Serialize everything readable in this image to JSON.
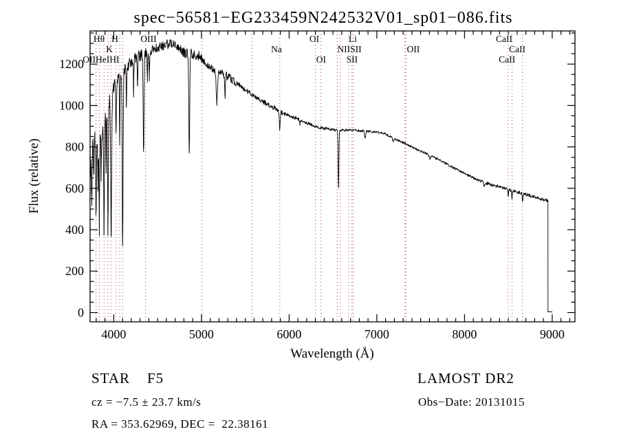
{
  "chart_data": {
    "type": "line",
    "title": "spec−56581−EG233459N242532V01_sp01−086.fits",
    "xlabel": "Wavelength (Å)",
    "ylabel": "Flux (relative)",
    "xlim": [
      3730,
      9260
    ],
    "ylim": [
      -45,
      1360
    ],
    "xticks": [
      4000,
      5000,
      6000,
      7000,
      8000,
      9000
    ],
    "yticks": [
      0,
      200,
      400,
      600,
      800,
      1000,
      1200
    ],
    "x_minor_step": 100,
    "x_major_step": 1000,
    "y_minor_step": 50,
    "y_major_step": 200,
    "grid": false,
    "legend": "none",
    "line_color": "#000000",
    "marker_line_color": "#9b3c3c",
    "series_name": "flux",
    "marker_lines": [
      3727,
      3798,
      3835,
      3889,
      3933,
      3968,
      4026,
      4068,
      4101,
      4363,
      5007,
      5577,
      5893,
      6300,
      6363,
      6548,
      6583,
      6678,
      6716,
      6731,
      7320,
      7330,
      8498,
      8542,
      8662
    ],
    "line_labels": [
      {
        "text": "Hθ",
        "row": 0,
        "wl": 3832
      },
      {
        "text": "H",
        "row": 0,
        "wl": 4012
      },
      {
        "text": "OIII",
        "row": 0,
        "wl": 4397
      },
      {
        "text": "OI",
        "row": 0,
        "wl": 6287
      },
      {
        "text": "Li",
        "row": 0,
        "wl": 6726
      },
      {
        "text": "CaII",
        "row": 0,
        "wl": 8452
      },
      {
        "text": "K",
        "row": 1,
        "wl": 3950
      },
      {
        "text": "Na",
        "row": 1,
        "wl": 5856
      },
      {
        "text": "NIISII",
        "row": 1,
        "wl": 6687
      },
      {
        "text": "OII",
        "row": 1,
        "wl": 7416
      },
      {
        "text": "CaII",
        "row": 1,
        "wl": 8601
      },
      {
        "text": "OIIHeIHI",
        "row": 2,
        "wl": 3855
      },
      {
        "text": "OI",
        "row": 2,
        "wl": 6365
      },
      {
        "text": "SII",
        "row": 2,
        "wl": 6718
      },
      {
        "text": "CaII",
        "row": 2,
        "wl": 8484
      }
    ],
    "spectrum": {
      "sample_step": 4,
      "noise_seed": 20131015,
      "envelope": [
        [
          3733,
          620
        ],
        [
          3745,
          760
        ],
        [
          3760,
          800
        ],
        [
          3780,
          830
        ],
        [
          3800,
          845
        ],
        [
          3830,
          855
        ],
        [
          3860,
          880
        ],
        [
          3900,
          950
        ],
        [
          3950,
          1010
        ],
        [
          4000,
          1090
        ],
        [
          4060,
          1140
        ],
        [
          4120,
          1170
        ],
        [
          4200,
          1210
        ],
        [
          4300,
          1240
        ],
        [
          4400,
          1260
        ],
        [
          4500,
          1280
        ],
        [
          4600,
          1295
        ],
        [
          4680,
          1300
        ],
        [
          4750,
          1275
        ],
        [
          4820,
          1250
        ],
        [
          4900,
          1250
        ],
        [
          4970,
          1240
        ],
        [
          5050,
          1205
        ],
        [
          5120,
          1175
        ],
        [
          5200,
          1160
        ],
        [
          5300,
          1140
        ],
        [
          5400,
          1110
        ],
        [
          5500,
          1075
        ],
        [
          5600,
          1045
        ],
        [
          5700,
          1020
        ],
        [
          5800,
          995
        ],
        [
          5900,
          970
        ],
        [
          6000,
          950
        ],
        [
          6100,
          935
        ],
        [
          6200,
          915
        ],
        [
          6300,
          898
        ],
        [
          6400,
          890
        ],
        [
          6500,
          883
        ],
        [
          6600,
          880
        ],
        [
          6700,
          882
        ],
        [
          6800,
          878
        ],
        [
          6900,
          876
        ],
        [
          7000,
          872
        ],
        [
          7100,
          862
        ],
        [
          7250,
          830
        ],
        [
          7400,
          800
        ],
        [
          7550,
          770
        ],
        [
          7700,
          740
        ],
        [
          7850,
          705
        ],
        [
          8000,
          672
        ],
        [
          8150,
          640
        ],
        [
          8300,
          618
        ],
        [
          8450,
          600
        ],
        [
          8600,
          582
        ],
        [
          8750,
          565
        ],
        [
          8900,
          545
        ],
        [
          8950,
          540
        ]
      ],
      "absorption_lines": [
        {
          "wl": 3750,
          "flux": 560,
          "sigma": 4
        },
        {
          "wl": 3771,
          "flux": 640,
          "sigma": 3
        },
        {
          "wl": 3798,
          "flux": 490,
          "sigma": 4
        },
        {
          "wl": 3820,
          "flux": 620,
          "sigma": 3
        },
        {
          "wl": 3835,
          "flux": 430,
          "sigma": 4
        },
        {
          "wl": 3856,
          "flux": 680,
          "sigma": 3
        },
        {
          "wl": 3889,
          "flux": 395,
          "sigma": 4
        },
        {
          "wl": 3912,
          "flux": 700,
          "sigma": 3
        },
        {
          "wl": 3933,
          "flux": 400,
          "sigma": 4
        },
        {
          "wl": 3970,
          "flux": 340,
          "sigma": 5
        },
        {
          "wl": 4026,
          "flux": 880,
          "sigma": 4
        },
        {
          "wl": 4068,
          "flux": 820,
          "sigma": 3
        },
        {
          "wl": 4101,
          "flux": 330,
          "sigma": 5
        },
        {
          "wl": 4144,
          "flux": 1000,
          "sigma": 3
        },
        {
          "wl": 4226,
          "flux": 1060,
          "sigma": 3
        },
        {
          "wl": 4271,
          "flux": 1100,
          "sigma": 3
        },
        {
          "wl": 4340,
          "flux": 775,
          "sigma": 5
        },
        {
          "wl": 4383,
          "flux": 1120,
          "sigma": 3
        },
        {
          "wl": 4405,
          "flux": 1140,
          "sigma": 3
        },
        {
          "wl": 4861,
          "flux": 775,
          "sigma": 5
        },
        {
          "wl": 5175,
          "flux": 1010,
          "sigma": 7
        },
        {
          "wl": 5269,
          "flux": 1045,
          "sigma": 4
        },
        {
          "wl": 5893,
          "flux": 880,
          "sigma": 5
        },
        {
          "wl": 6122,
          "flux": 905,
          "sigma": 3
        },
        {
          "wl": 6563,
          "flux": 600,
          "sigma": 4.5
        },
        {
          "wl": 6867,
          "flux": 840,
          "sigma": 6
        },
        {
          "wl": 7186,
          "flux": 825,
          "sigma": 5
        },
        {
          "wl": 7605,
          "flux": 745,
          "sigma": 8
        },
        {
          "wl": 8227,
          "flux": 610,
          "sigma": 5
        },
        {
          "wl": 8498,
          "flux": 565,
          "sigma": 4
        },
        {
          "wl": 8542,
          "flux": 552,
          "sigma": 4
        },
        {
          "wl": 8662,
          "flux": 540,
          "sigma": 4
        }
      ],
      "noise_regions": [
        {
          "from": 3732,
          "to": 3995,
          "amp": 60
        },
        {
          "from": 3995,
          "to": 4320,
          "amp": 30
        },
        {
          "from": 4320,
          "to": 4980,
          "amp": 24
        },
        {
          "from": 4980,
          "to": 5400,
          "amp": 20
        },
        {
          "from": 5400,
          "to": 5950,
          "amp": 12
        },
        {
          "from": 5950,
          "to": 6550,
          "amp": 8
        },
        {
          "from": 6550,
          "to": 7250,
          "amp": 6
        },
        {
          "from": 7250,
          "to": 8250,
          "amp": 6
        },
        {
          "from": 8250,
          "to": 9010,
          "amp": 8
        }
      ],
      "cutoff": {
        "wl": 8952,
        "end": 9005,
        "floor": 2
      }
    }
  },
  "annotations": {
    "class_line": "STAR    F5",
    "survey": "LAMOST DR2",
    "cz_line": "cz = −7.5 ± 23.7 km/s",
    "obs_date": "Obs−Date: 20131015",
    "coords_line": "RA = 353.62969, DEC =  22.38161"
  }
}
